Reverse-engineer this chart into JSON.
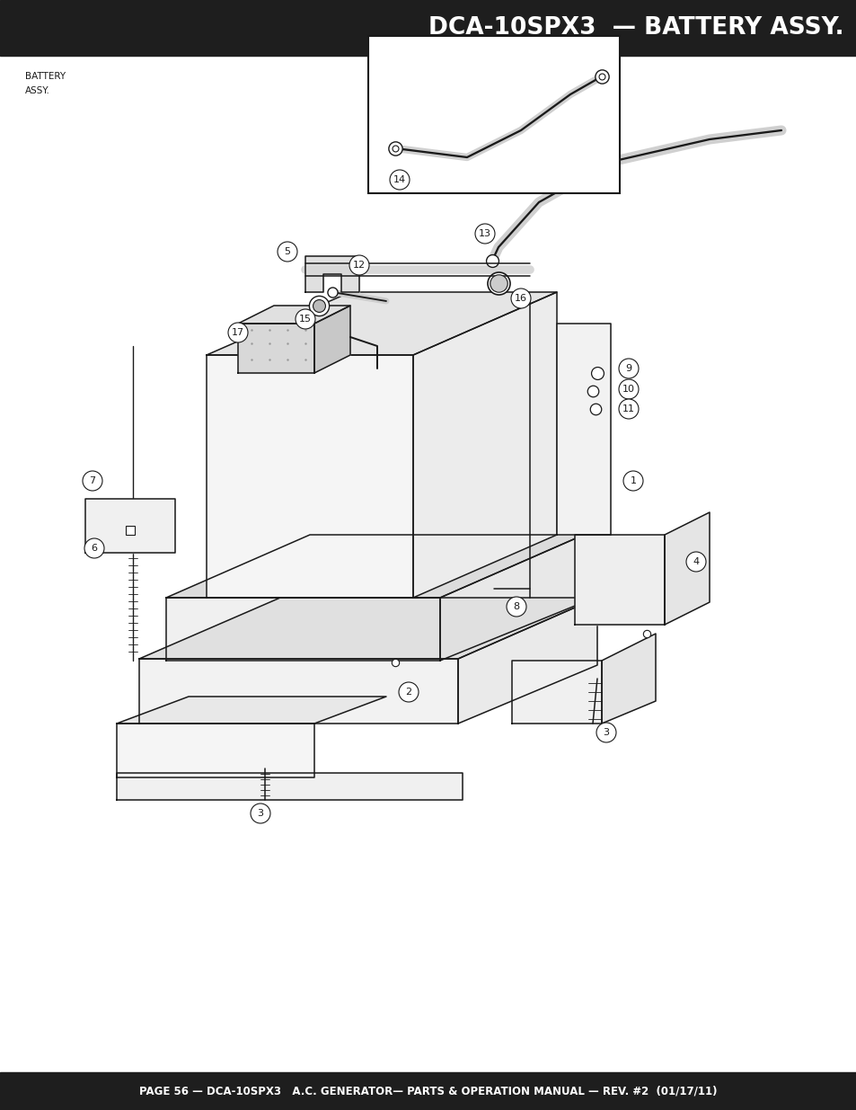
{
  "header_text": "DCA-10SPX3  — BATTERY ASSY.",
  "header_bg": "#1e1e1e",
  "header_text_color": "#ffffff",
  "footer_text": "PAGE 56 — DCA-10SPX3   A.C. GENERATOR— PARTS & OPERATION MANUAL — REV. #2  (01/17/11)",
  "footer_bg": "#1e1e1e",
  "footer_text_color": "#ffffff",
  "label_text": "BATTERY\nASSY.",
  "bg_color": "#ffffff",
  "line_color": "#1a1a1a"
}
